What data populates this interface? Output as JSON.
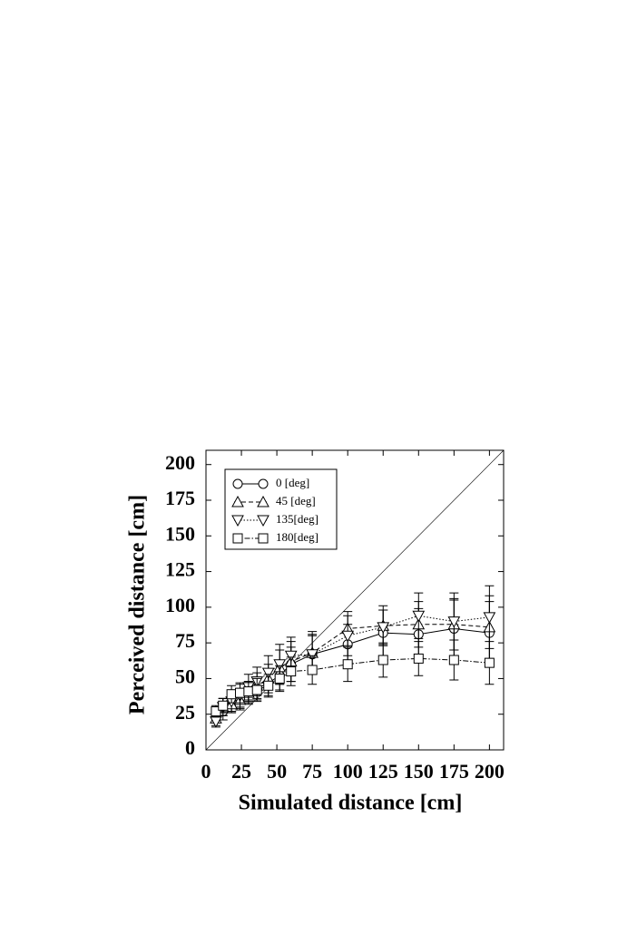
{
  "chart_data": {
    "type": "line",
    "xlabel": "Simulated distance [cm]",
    "ylabel": "Perceived distance [cm]",
    "x": [
      7,
      12,
      18,
      24,
      30,
      36,
      44,
      52,
      60,
      75,
      100,
      125,
      150,
      175,
      200
    ],
    "series": [
      {
        "name": " 0 [deg]",
        "color": "#000",
        "marker": "circle",
        "dash": "none",
        "values": [
          25,
          27,
          33,
          36,
          40,
          43,
          47,
          52,
          60,
          67,
          74,
          82,
          81,
          85,
          82
        ],
        "errors": [
          5,
          6,
          6,
          7,
          7,
          8,
          9,
          10,
          12,
          13,
          14,
          16,
          18,
          20,
          22
        ]
      },
      {
        "name": "45 [deg]",
        "color": "#000",
        "marker": "triangle-up",
        "dash": "5,3",
        "values": [
          22,
          30,
          32,
          35,
          40,
          45,
          50,
          58,
          62,
          68,
          85,
          87,
          88,
          88,
          86
        ],
        "errors": [
          5,
          6,
          6,
          7,
          8,
          9,
          10,
          12,
          14,
          15,
          12,
          14,
          16,
          18,
          22
        ]
      },
      {
        "name": "135[deg]",
        "color": "#000",
        "marker": "triangle-down",
        "dash": "1.5,2",
        "values": [
          20,
          30,
          34,
          38,
          44,
          48,
          54,
          60,
          66,
          67,
          80,
          86,
          94,
          90,
          93
        ],
        "errors": [
          4,
          6,
          7,
          8,
          9,
          10,
          12,
          14,
          13,
          14,
          14,
          12,
          16,
          20,
          22
        ]
      },
      {
        "name": "180[deg]",
        "color": "#000",
        "marker": "square",
        "dash": "6,2,1.5,2",
        "values": [
          27,
          31,
          39,
          40,
          41,
          42,
          45,
          50,
          55,
          56,
          60,
          63,
          64,
          63,
          61
        ],
        "errors": [
          4,
          5,
          6,
          7,
          7,
          8,
          8,
          9,
          10,
          10,
          12,
          12,
          12,
          14,
          15
        ]
      }
    ],
    "xlim": [
      0,
      210
    ],
    "ylim": [
      0,
      210
    ],
    "xticks": [
      0,
      25,
      50,
      75,
      100,
      125,
      150,
      175,
      200
    ],
    "yticks": [
      0,
      25,
      50,
      75,
      100,
      125,
      150,
      175,
      200
    ],
    "diagonal": true,
    "legend": "upper left",
    "grid": false
  }
}
